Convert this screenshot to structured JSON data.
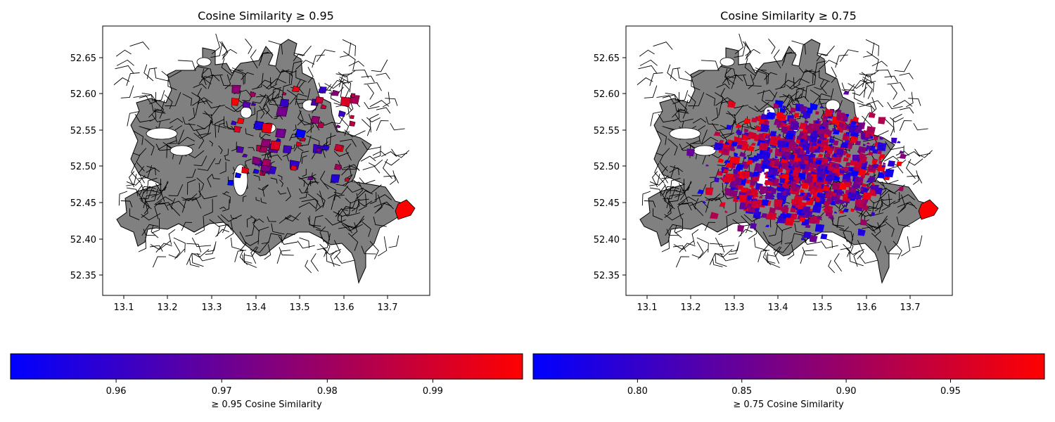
{
  "panels": [
    {
      "title": "Cosine Similarity ≥ 0.95",
      "xticks": [
        "13.1",
        "13.2",
        "13.3",
        "13.4",
        "13.5",
        "13.6",
        "13.7"
      ],
      "yticks": [
        "52.65",
        "52.60",
        "52.55",
        "52.50",
        "52.45",
        "52.40",
        "52.35"
      ],
      "colorbar": {
        "label": "≥ 0.95 Cosine Similarity",
        "ticks": [
          "0.96",
          "0.97",
          "0.98",
          "0.99"
        ],
        "min": 0.95,
        "max": 0.9985,
        "tick_values": [
          0.96,
          0.97,
          0.98,
          0.99
        ]
      },
      "highlight_density": "sparse"
    },
    {
      "title": "Cosine Similarity ≥ 0.75",
      "xticks": [
        "13.1",
        "13.2",
        "13.3",
        "13.4",
        "13.5",
        "13.6",
        "13.7"
      ],
      "yticks": [
        "52.65",
        "52.60",
        "52.55",
        "52.50",
        "52.45",
        "52.40",
        "52.35"
      ],
      "colorbar": {
        "label": "≥ 0.75 Cosine Similarity",
        "ticks": [
          "0.80",
          "0.85",
          "0.90",
          "0.95"
        ],
        "min": 0.75,
        "max": 0.995,
        "tick_values": [
          0.8,
          0.85,
          0.9,
          0.95
        ]
      },
      "highlight_density": "dense"
    }
  ],
  "colors": {
    "low": "#0000ff",
    "high": "#ff0000",
    "base": "#808080",
    "edge": "#000000"
  }
}
